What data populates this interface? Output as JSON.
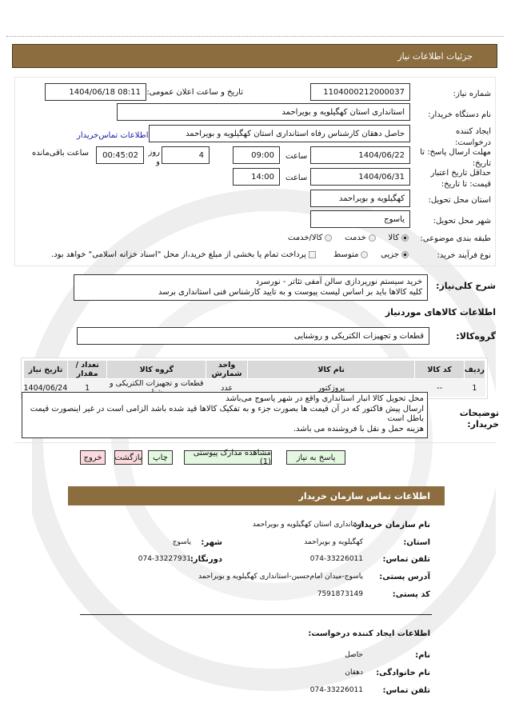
{
  "header": {
    "title": "جزئیات اطلاعات نیاز"
  },
  "form": {
    "need_number_label": "شماره نیاز:",
    "need_number": "1104000212000037",
    "announce_label": "تاریخ و ساعت اعلان عمومی:",
    "announce_value": "1404/06/18 08:11",
    "buyer_name_label": "نام دستگاه خریدار:",
    "buyer_name": "استانداری استان  کهگیلویه و بویراحمد",
    "creator_label": "ایجاد کننده درخواست:",
    "creator": "حاصل دهقان کارشناس رفاه استانداری استان  کهگیلویه و بویراحمد",
    "contact_link": "اطلاعات تماس‌خریدار",
    "deadline_label": "مهلت ارسال پاسخ: تا تاریخ:",
    "deadline_date": "1404/06/22",
    "time_label": "ساعت",
    "deadline_time": "09:00",
    "days": "4",
    "days_label": "روز و",
    "remaining": "00:45:02",
    "remaining_label": "ساعت باقی‌مانده",
    "validity_label": "حداقل تاریخ اعتبار قیمت: تا تاریخ:",
    "validity_date": "1404/06/31",
    "validity_time": "14:00",
    "province_label": "استان محل تحویل:",
    "province": "کهگیلویه و بویراحمد",
    "city_label": "شهر محل تحویل:",
    "city": "یاسوج",
    "category_label": "طبقه بندی موضوعی:",
    "category_options": [
      "کالا",
      "خدمت",
      "کالا/خدمت"
    ],
    "category_selected": "کالا",
    "process_label": "نوع فرآیند خرید:",
    "process_options": [
      "جزیی",
      "متوسط"
    ],
    "process_selected": "جزیی",
    "payment_note": "پرداخت تمام یا بخشی از مبلغ خرید،از محل \"اسناد خزانه اسلامی\" خواهد بود."
  },
  "description": {
    "label": "شرح کلی‌نیاز:",
    "line1": "خرید سیستم نورپردازی سالن آمفی تئاتر - نورسرد",
    "line2": "کلیه کالاها باید بر اساس لیست پیوست و به تایید کارشناس فنی استانداری برسد"
  },
  "goods": {
    "title": "اطلاعات کالاهای موردنیاز",
    "group_label": "گروه‌کالا:",
    "group": "قطعات و تجهیزات  الکتریکی و روشنایی",
    "columns": [
      "ردیف",
      "کد کالا",
      "نام کالا",
      "واحد شمارش",
      "گروه کالا",
      "تعداد / مقدار",
      "تاریخ نیاز"
    ],
    "rows": [
      [
        "1",
        "--",
        "پروژکتور",
        "عدد",
        "قطعات و تجهیزات الکتریکی و روشنایی",
        "1",
        "1404/06/24"
      ]
    ]
  },
  "notes": {
    "label": "توضیحات خریدار:",
    "line1": "محل تحویل کالا انبار استانداری واقع در شهر یاسوج می‌باشد",
    "line2": "ارسال پیش فاکتور  که در آن قیمت ها  بصورت جزء و به  تفکیک کالاها قید شده باشد الزامی است در غیر  اینصورت قیمت باطل است",
    "line3": "هزینه حمل و نقل با فروشنده می باشد."
  },
  "buttons": {
    "reply": "پاسخ به نیاز",
    "attachments": "مشاهده مدارک پیوستی (1)",
    "print": "چاپ",
    "back": "بازگشت",
    "exit": "خروج"
  },
  "contact": {
    "title": "اطلاعات تماس سازمان خریدار",
    "org_label": "نام سازمان خریدار:",
    "org": "استانداری استان کهگیلویه و بویراحمد",
    "province_label": "استان:",
    "province": "کهگیلویه و بویراحمد",
    "city_label": "شهر:",
    "city": "یاسوج",
    "phone_label": "تلفن تماس:",
    "phone": "074-33226011",
    "fax_label": "دورنگار:",
    "fax": "074-33227931",
    "address_label": "آدرس پستی:",
    "address": "یاسوج-میدان امام‌حسین-استانداری کهگیلویه و بویراحمد",
    "postal_label": "کد پستی:",
    "postal": "7591873149"
  },
  "creator_info": {
    "title": "اطلاعات ایجاد کننده درخواست:",
    "name_label": "نام:",
    "name": "حاصل",
    "family_label": "نام خانوادگی:",
    "family": "دهقان",
    "phone_label": "تلفن تماس:",
    "phone": "074-33226011"
  },
  "colors": {
    "header": "#8b6d40",
    "green_button": "#e4f7e0",
    "red_button": "#f9d9de",
    "link": "#1a1aa6"
  }
}
